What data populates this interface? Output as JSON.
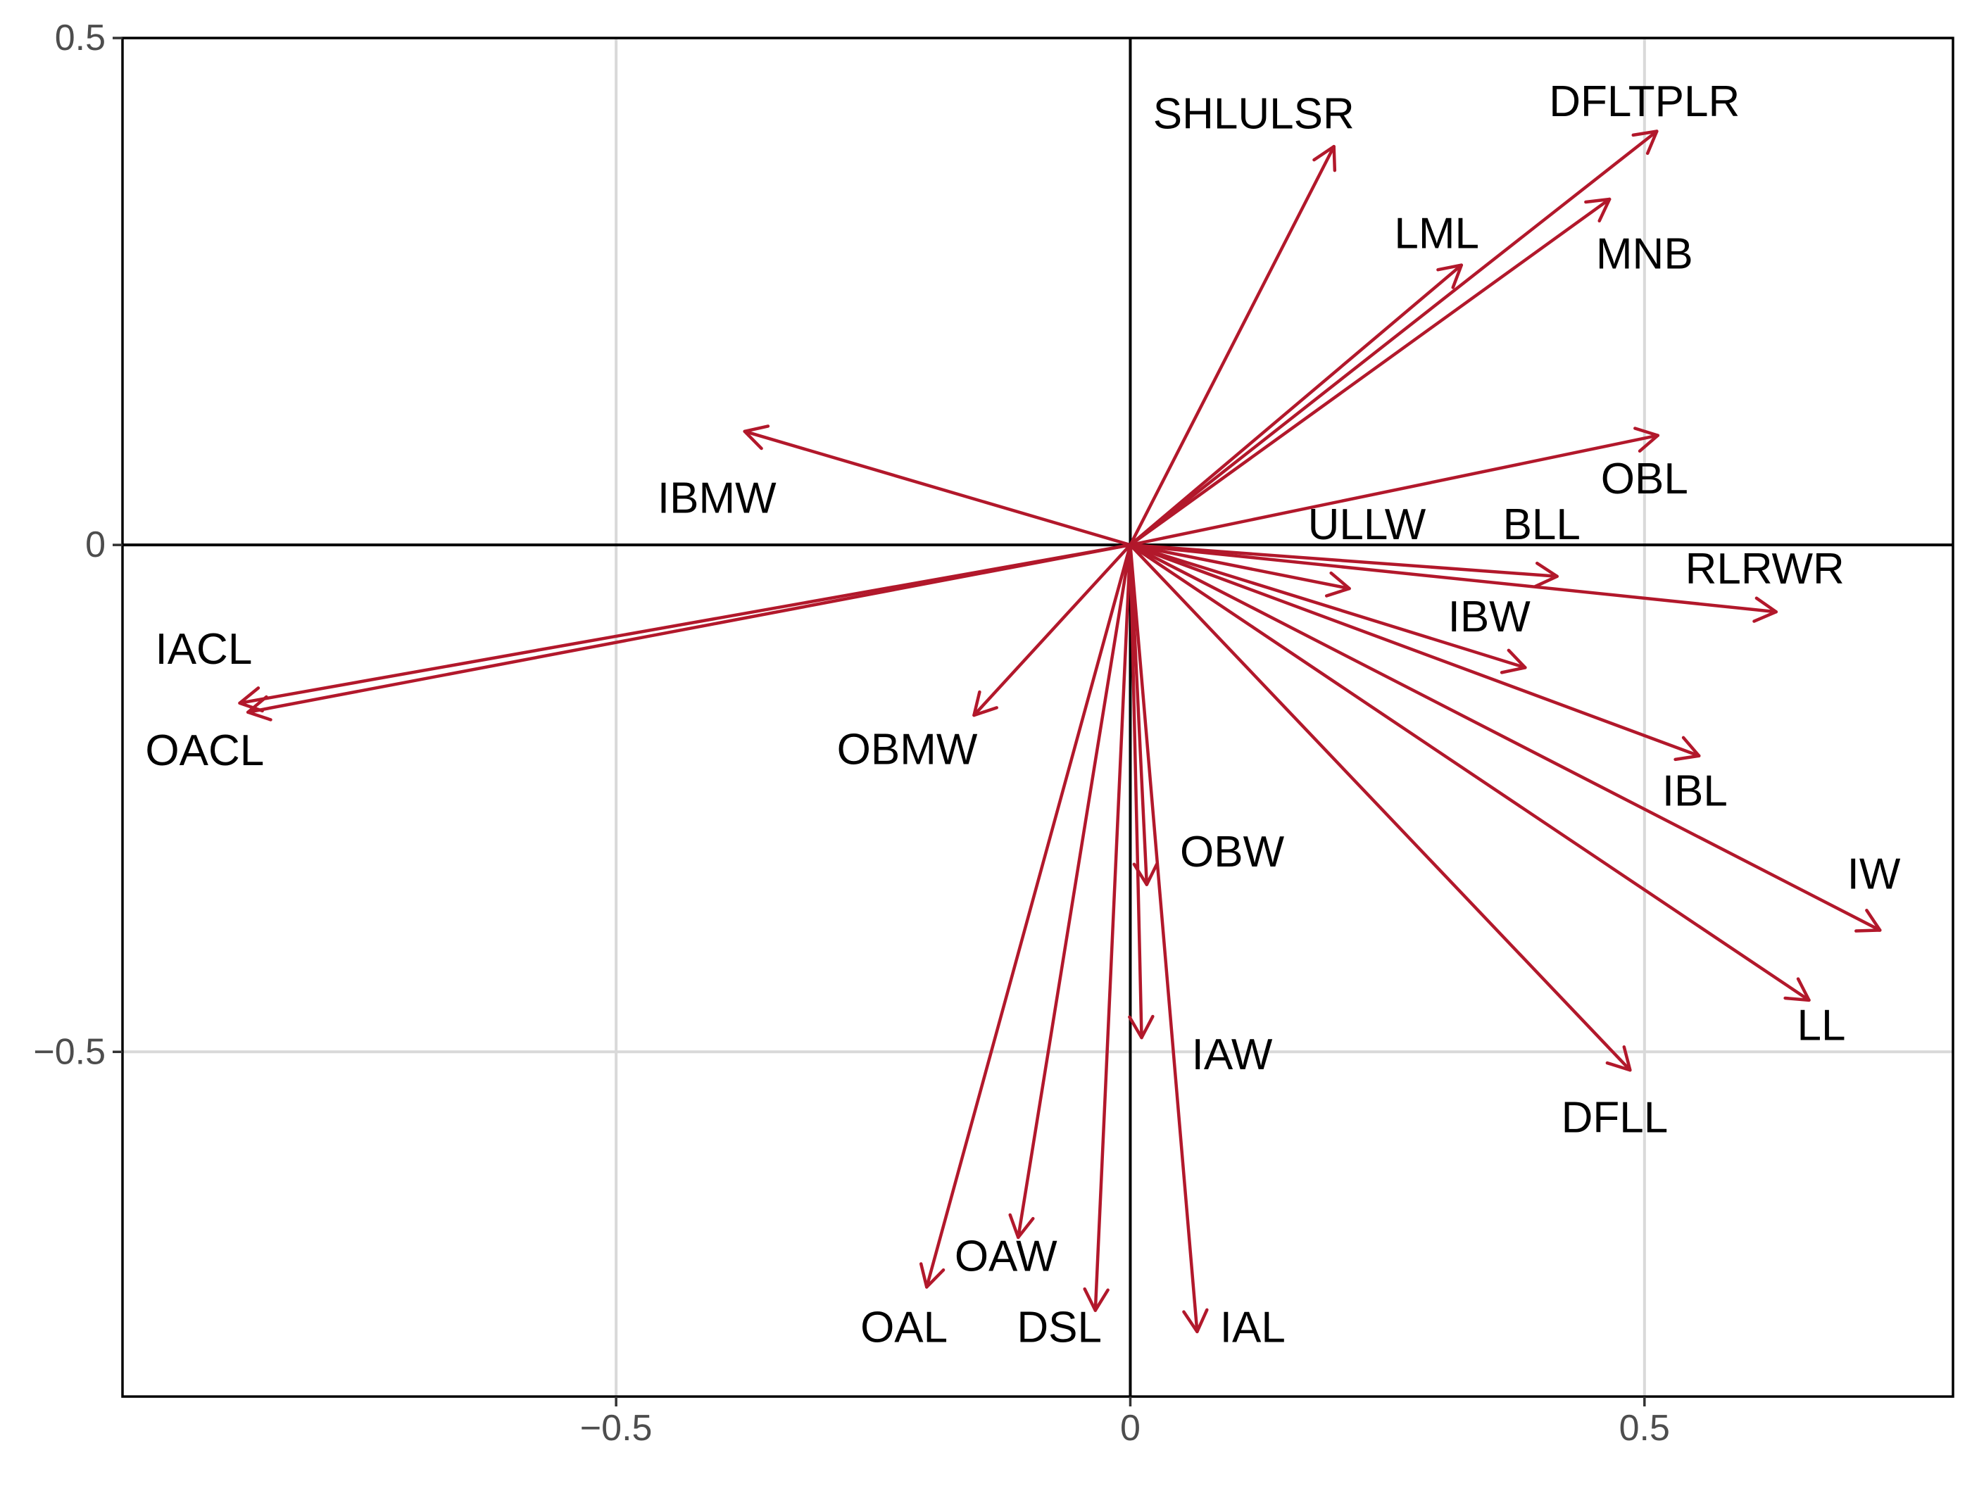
{
  "chart_data": {
    "type": "biplot-arrows",
    "title": "",
    "xlabel": "",
    "ylabel": "",
    "xlim": [
      -0.98,
      0.8
    ],
    "ylim": [
      -0.84,
      0.5
    ],
    "x_ticks": [
      -0.5,
      0,
      0.5
    ],
    "x_tick_labels": [
      "−0.5",
      "0",
      "0.5"
    ],
    "y_ticks": [
      -0.5,
      0,
      0.5
    ],
    "y_tick_labels": [
      "−0.5",
      "0",
      "0.5"
    ],
    "grid": true,
    "grid_color": "#d9d9d9",
    "axis_color": "#000000",
    "arrow_color": "#b2182b",
    "vectors": [
      {
        "name": "SHLULSR",
        "x": 0.198,
        "y": 0.393
      },
      {
        "name": "DFLTPLR",
        "x": 0.512,
        "y": 0.408
      },
      {
        "name": "LML",
        "x": 0.322,
        "y": 0.276
      },
      {
        "name": "MNB",
        "x": 0.466,
        "y": 0.341
      },
      {
        "name": "IBMW",
        "x": -0.375,
        "y": 0.112
      },
      {
        "name": "OBL",
        "x": 0.513,
        "y": 0.108
      },
      {
        "name": "ULLW",
        "x": 0.213,
        "y": -0.043
      },
      {
        "name": "BLL",
        "x": 0.415,
        "y": -0.031
      },
      {
        "name": "RLRWR",
        "x": 0.628,
        "y": -0.066
      },
      {
        "name": "IBW",
        "x": 0.384,
        "y": -0.121
      },
      {
        "name": "IACL",
        "x": -0.866,
        "y": -0.156
      },
      {
        "name": "OACL",
        "x": -0.858,
        "y": -0.165
      },
      {
        "name": "OBMW",
        "x": -0.152,
        "y": -0.168
      },
      {
        "name": "IBL",
        "x": 0.553,
        "y": -0.208
      },
      {
        "name": "OBW",
        "x": 0.016,
        "y": -0.335
      },
      {
        "name": "IW",
        "x": 0.729,
        "y": -0.38
      },
      {
        "name": "LL",
        "x": 0.66,
        "y": -0.449
      },
      {
        "name": "IAW",
        "x": 0.011,
        "y": -0.486
      },
      {
        "name": "DFLL",
        "x": 0.486,
        "y": -0.518
      },
      {
        "name": "OAW",
        "x": -0.109,
        "y": -0.683
      },
      {
        "name": "DSL",
        "x": -0.034,
        "y": -0.755
      },
      {
        "name": "OAL",
        "x": -0.198,
        "y": -0.732
      },
      {
        "name": "IAL",
        "x": 0.065,
        "y": -0.776
      }
    ],
    "labels": [
      {
        "text": "SHLULSR",
        "x": 0.12,
        "y": 0.425
      },
      {
        "text": "DFLTPLR",
        "x": 0.5,
        "y": 0.437
      },
      {
        "text": "LML",
        "x": 0.298,
        "y": 0.307
      },
      {
        "text": "MNB",
        "x": 0.5,
        "y": 0.287
      },
      {
        "text": "IBMW",
        "x": -0.402,
        "y": 0.046
      },
      {
        "text": "OBL",
        "x": 0.5,
        "y": 0.065
      },
      {
        "text": "ULLW",
        "x": 0.23,
        "y": 0.02
      },
      {
        "text": "BLL",
        "x": 0.4,
        "y": 0.02
      },
      {
        "text": "RLRWR",
        "x": 0.617,
        "y": -0.024
      },
      {
        "text": "IBW",
        "x": 0.349,
        "y": -0.071
      },
      {
        "text": "IACL",
        "x": -0.901,
        "y": -0.103
      },
      {
        "text": "OACL",
        "x": -0.9,
        "y": -0.203
      },
      {
        "text": "OBMW",
        "x": -0.217,
        "y": -0.202
      },
      {
        "text": "IBL",
        "x": 0.549,
        "y": -0.243
      },
      {
        "text": "OBW",
        "x": 0.099,
        "y": -0.303
      },
      {
        "text": "IW",
        "x": 0.723,
        "y": -0.325
      },
      {
        "text": "LL",
        "x": 0.672,
        "y": -0.474
      },
      {
        "text": "IAW",
        "x": 0.099,
        "y": -0.503
      },
      {
        "text": "DFLL",
        "x": 0.471,
        "y": -0.565
      },
      {
        "text": "OAW",
        "x": -0.121,
        "y": -0.702
      },
      {
        "text": "DSL",
        "x": -0.069,
        "y": -0.772
      },
      {
        "text": "OAL",
        "x": -0.22,
        "y": -0.772
      },
      {
        "text": "IAL",
        "x": 0.119,
        "y": -0.772
      }
    ]
  }
}
